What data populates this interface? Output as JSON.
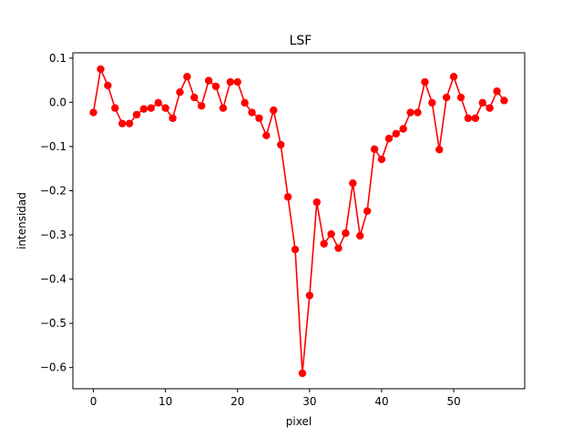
{
  "chart_data": {
    "type": "line",
    "title": "LSF",
    "xlabel": "pixel",
    "ylabel": "intensidad",
    "xlim": [
      -2.85,
      59.85
    ],
    "ylim": [
      -0.648,
      0.112
    ],
    "xticks": [
      0,
      10,
      20,
      30,
      40,
      50
    ],
    "yticks": [
      0.1,
      0.0,
      -0.1,
      -0.2,
      -0.3,
      -0.4,
      -0.5,
      -0.6
    ],
    "xtick_labels": [
      "0",
      "10",
      "20",
      "30",
      "40",
      "50"
    ],
    "ytick_labels": [
      "0.1",
      "0.0",
      "−0.1",
      "−0.2",
      "−0.3",
      "−0.4",
      "−0.5",
      "−0.6"
    ],
    "grid": false,
    "series": [
      {
        "color": "#ff0000",
        "marker": "circle",
        "x": [
          0,
          1,
          2,
          3,
          4,
          5,
          6,
          7,
          8,
          9,
          10,
          11,
          12,
          13,
          14,
          15,
          16,
          17,
          18,
          19,
          20,
          21,
          22,
          23,
          24,
          25,
          26,
          27,
          28,
          29,
          30,
          31,
          32,
          33,
          34,
          35,
          36,
          37,
          38,
          39,
          40,
          41,
          42,
          43,
          44,
          45,
          46,
          47,
          48,
          49,
          50,
          51,
          52,
          53,
          54,
          55,
          56,
          57
        ],
        "values": [
          -0.023,
          0.075,
          0.038,
          -0.013,
          -0.048,
          -0.048,
          -0.028,
          -0.015,
          -0.013,
          -0.001,
          -0.013,
          -0.036,
          0.023,
          0.058,
          0.011,
          -0.008,
          0.049,
          0.036,
          -0.013,
          0.046,
          0.046,
          -0.001,
          -0.023,
          -0.036,
          -0.075,
          -0.018,
          -0.096,
          -0.214,
          -0.333,
          -0.613,
          -0.437,
          -0.226,
          -0.32,
          -0.298,
          -0.33,
          -0.296,
          -0.183,
          -0.302,
          -0.246,
          -0.106,
          -0.129,
          -0.082,
          -0.071,
          -0.06,
          -0.023,
          -0.023,
          0.046,
          -0.001,
          -0.107,
          0.011,
          0.058,
          0.011,
          -0.036,
          -0.036,
          -0.001,
          -0.013,
          0.025,
          0.004
        ]
      }
    ]
  }
}
